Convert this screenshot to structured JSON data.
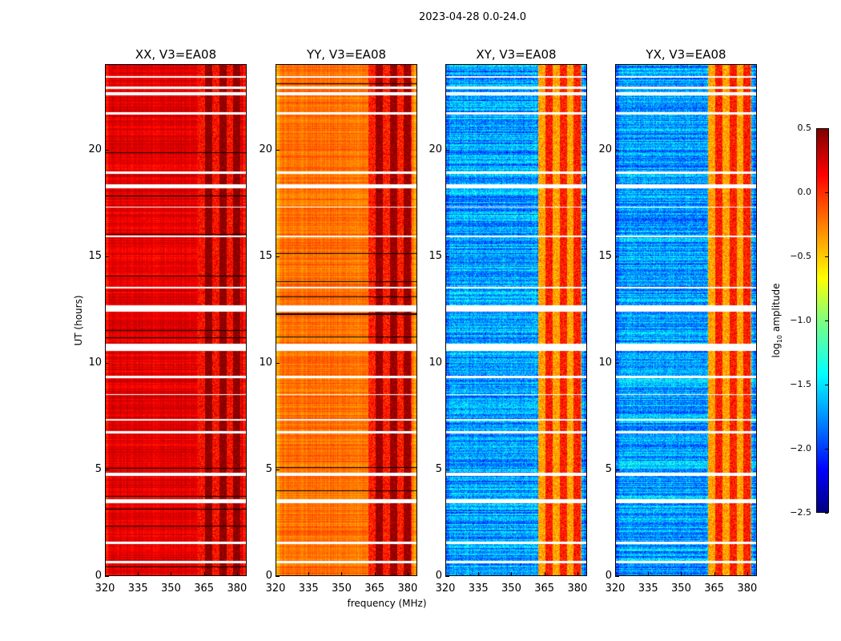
{
  "chart_data": {
    "type": "heatmap",
    "suptitle": "2023-04-28 0.0-24.0",
    "xlabel": "frequency (MHz)",
    "ylabel": "UT (hours)",
    "xlim": [
      320,
      384.4
    ],
    "ylim": [
      0,
      24
    ],
    "xticks": [
      "320",
      "335",
      "350",
      "365",
      "380"
    ],
    "yticks": [
      "0",
      "5",
      "10",
      "15",
      "20"
    ],
    "colorbar": {
      "label_main": "log",
      "label_sub": "10",
      "label_rest": " amplitude",
      "range": [
        -2.5,
        0.5
      ],
      "ticks": [
        "0.5",
        "0.0",
        "−0.5",
        "−1.0",
        "−1.5",
        "−2.0",
        "−2.5"
      ],
      "colormap": "jet"
    },
    "panels": [
      {
        "title": "XX, V3=EA08",
        "mean_log_amp": 0.2,
        "rfi_band_mhz": [
          362,
          382
        ],
        "rfi_log_amp": 0.35
      },
      {
        "title": "YY, V3=EA08",
        "mean_log_amp": -0.2,
        "rfi_band_mhz": [
          362,
          382
        ],
        "rfi_log_amp": 0.3
      },
      {
        "title": "XY, V3=EA08",
        "mean_log_amp": -1.65,
        "rfi_band_mhz": [
          362,
          382
        ],
        "rfi_log_amp": -0.1
      },
      {
        "title": "YX, V3=EA08",
        "mean_log_amp": -1.65,
        "rfi_band_mhz": [
          362,
          382
        ],
        "rfi_log_amp": -0.1
      }
    ],
    "flagged_ut_ranges": [
      [
        0.6,
        0.7
      ],
      [
        1.5,
        1.6
      ],
      [
        3.4,
        3.6
      ],
      [
        4.7,
        4.85
      ],
      [
        6.7,
        6.8
      ],
      [
        7.3,
        7.35
      ],
      [
        8.5,
        8.55
      ],
      [
        9.3,
        9.4
      ],
      [
        10.55,
        10.9
      ],
      [
        12.4,
        12.7
      ],
      [
        13.5,
        13.6
      ],
      [
        15.9,
        16.0
      ],
      [
        17.3,
        17.35
      ],
      [
        18.2,
        18.4
      ],
      [
        18.9,
        19.0
      ],
      [
        21.7,
        21.8
      ],
      [
        22.6,
        22.75
      ],
      [
        22.9,
        23.0
      ],
      [
        23.4,
        23.5
      ]
    ]
  }
}
